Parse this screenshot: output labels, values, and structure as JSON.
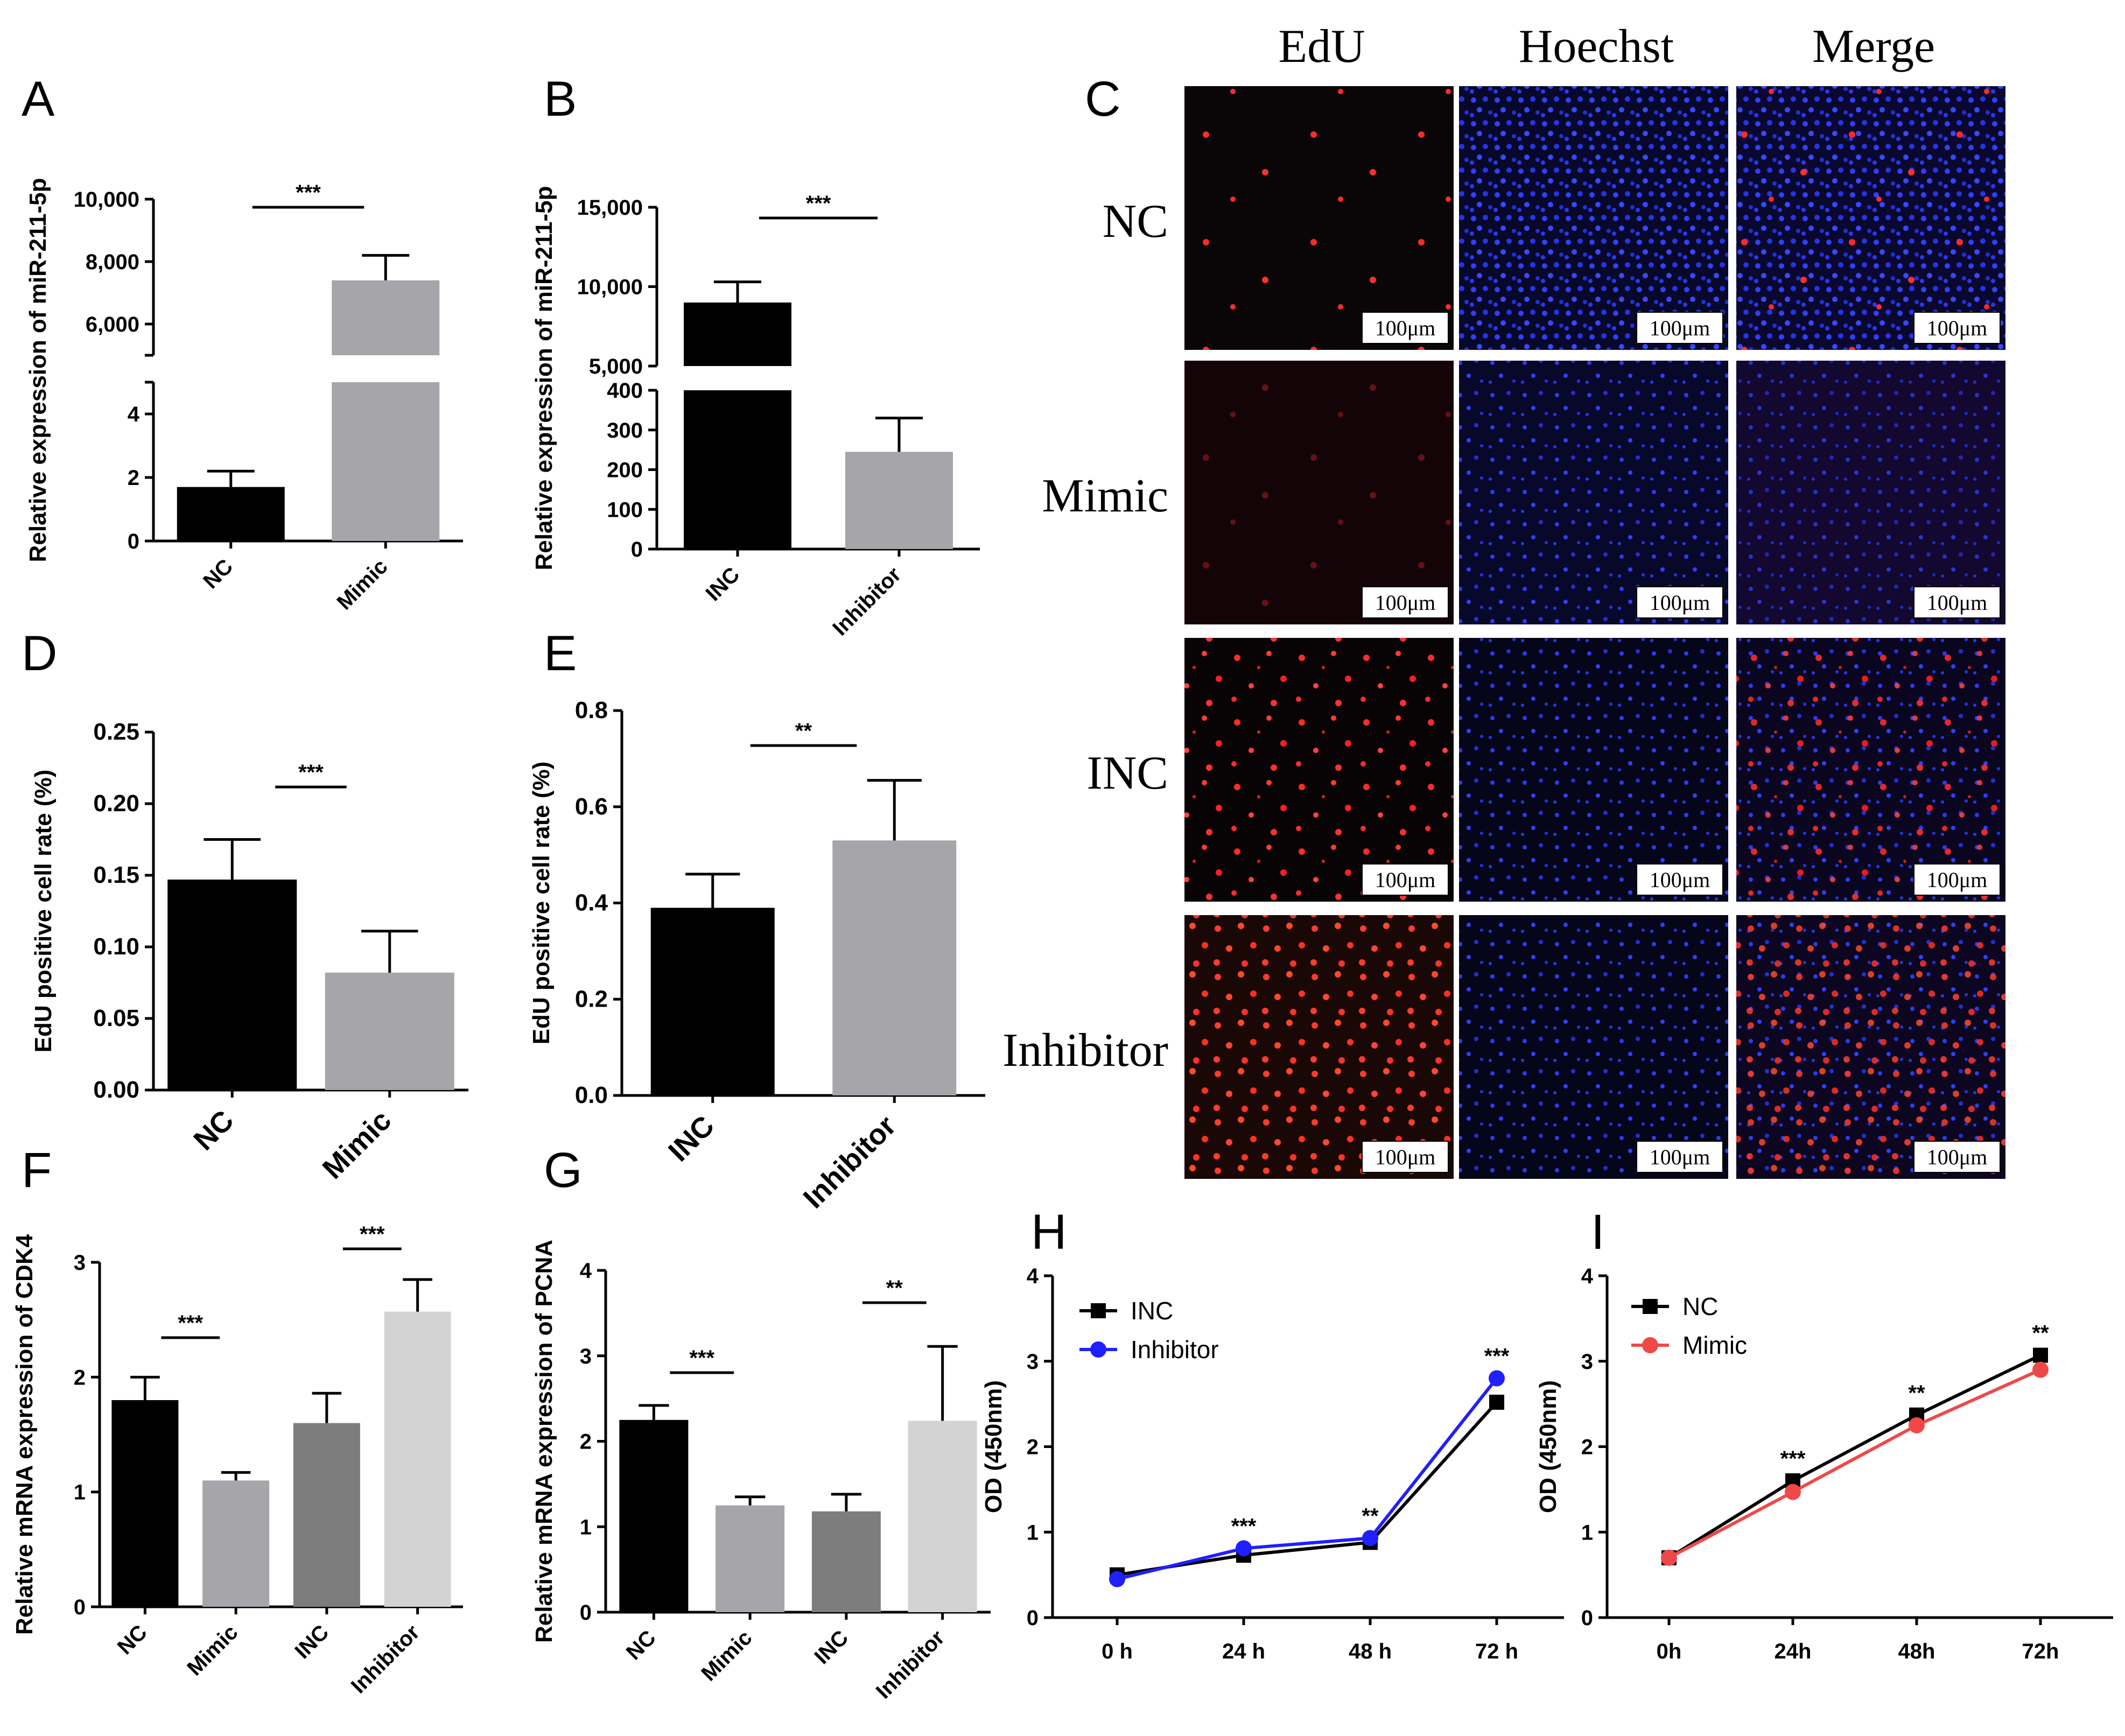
{
  "figure": {
    "panel_labels": [
      "A",
      "B",
      "C",
      "D",
      "E",
      "F",
      "G",
      "H",
      "I"
    ],
    "microscopy": {
      "columns": [
        "EdU",
        "Hoechst",
        "Merge"
      ],
      "rows": [
        "NC",
        "Mimic",
        "INC",
        "Inhibitor"
      ],
      "scale_bar": "100μm",
      "colors": {
        "edu": "#ff2a2a",
        "hoechst": "#2838ff",
        "background": "#06060c"
      }
    }
  },
  "chart_data": [
    {
      "panel": "A",
      "type": "bar",
      "axis_break": true,
      "categories": [
        "NC",
        "Mimic"
      ],
      "values": [
        1.7,
        7400
      ],
      "errors": [
        0.5,
        800
      ],
      "colors": [
        "#000000",
        "#a6a6aa"
      ],
      "ylabel": "Relative expression of miR-211-5p",
      "lower_ticks": [
        "0",
        "2",
        "4"
      ],
      "upper_ticks": [
        "6,000",
        "8,000",
        "10,000"
      ],
      "lower_range": [
        0,
        5
      ],
      "upper_range": [
        5000,
        10000
      ],
      "significance": [
        {
          "pair": [
            0,
            1
          ],
          "label": "***"
        }
      ]
    },
    {
      "panel": "B",
      "type": "bar",
      "axis_break": true,
      "categories": [
        "INC",
        "Inhibitor"
      ],
      "values": [
        9000,
        245
      ],
      "errors": [
        1300,
        85
      ],
      "colors": [
        "#000000",
        "#a6a6aa"
      ],
      "ylabel": "Relative expression of miR-211-5p",
      "lower_ticks": [
        "0",
        "100",
        "200",
        "300",
        "400"
      ],
      "upper_ticks": [
        "5,000",
        "10,000",
        "15,000"
      ],
      "lower_range": [
        0,
        400
      ],
      "upper_range": [
        5000,
        15000
      ],
      "significance": [
        {
          "pair": [
            0,
            1
          ],
          "label": "***"
        }
      ]
    },
    {
      "panel": "D",
      "type": "bar",
      "categories": [
        "NC",
        "Mimic"
      ],
      "values": [
        0.147,
        0.082
      ],
      "errors": [
        0.028,
        0.029
      ],
      "colors": [
        "#000000",
        "#a6a6aa"
      ],
      "ylabel": "EdU positive cell rate (%)",
      "yticks": [
        "0.00",
        "0.05",
        "0.10",
        "0.15",
        "0.20",
        "0.25"
      ],
      "ylim": [
        0,
        0.25
      ],
      "significance": [
        {
          "pair": [
            0,
            1
          ],
          "label": "***"
        }
      ]
    },
    {
      "panel": "E",
      "type": "bar",
      "categories": [
        "INC",
        "Inhibitor"
      ],
      "values": [
        0.39,
        0.53
      ],
      "errors": [
        0.07,
        0.125
      ],
      "colors": [
        "#000000",
        "#a6a6aa"
      ],
      "ylabel": "EdU positive cell rate (%)",
      "yticks": [
        "0.0",
        "0.2",
        "0.4",
        "0.6",
        "0.8"
      ],
      "ylim": [
        0,
        0.8
      ],
      "significance": [
        {
          "pair": [
            0,
            1
          ],
          "label": "**"
        }
      ]
    },
    {
      "panel": "F",
      "type": "bar",
      "categories": [
        "NC",
        "Mimic",
        "INC",
        "Inhibitor"
      ],
      "values": [
        1.8,
        1.1,
        1.6,
        2.57
      ],
      "errors": [
        0.2,
        0.07,
        0.26,
        0.28
      ],
      "colors": [
        "#000000",
        "#a6a6aa",
        "#7d7d7d",
        "#d3d3d3"
      ],
      "ylabel": "Relative mRNA expression of CDK4",
      "yticks": [
        "0",
        "1",
        "2",
        "3"
      ],
      "ylim": [
        0,
        3
      ],
      "significance": [
        {
          "pair": [
            0,
            1
          ],
          "label": "***"
        },
        {
          "pair": [
            2,
            3
          ],
          "label": "***"
        }
      ]
    },
    {
      "panel": "G",
      "type": "bar",
      "categories": [
        "NC",
        "Mimic",
        "INC",
        "Inhibitor"
      ],
      "values": [
        2.25,
        1.25,
        1.18,
        2.24
      ],
      "errors": [
        0.17,
        0.1,
        0.2,
        0.87
      ],
      "colors": [
        "#000000",
        "#a6a6aa",
        "#7d7d7d",
        "#d3d3d3"
      ],
      "ylabel": "Relative mRNA expression of PCNA",
      "yticks": [
        "0",
        "1",
        "2",
        "3",
        "4"
      ],
      "ylim": [
        0,
        4
      ],
      "significance": [
        {
          "pair": [
            0,
            1
          ],
          "label": "***"
        },
        {
          "pair": [
            2,
            3
          ],
          "label": "**"
        }
      ]
    },
    {
      "panel": "H",
      "type": "line",
      "x": [
        "0 h",
        "24 h",
        "48 h",
        "72 h"
      ],
      "series": [
        {
          "name": "INC",
          "values": [
            0.5,
            0.73,
            0.88,
            2.52
          ],
          "color": "#000000",
          "marker": "square"
        },
        {
          "name": "Inhibitor",
          "values": [
            0.45,
            0.81,
            0.93,
            2.8
          ],
          "color": "#1f1fff",
          "marker": "circle"
        }
      ],
      "ylabel": "OD (450nm)",
      "yticks": [
        "0",
        "1",
        "2",
        "3",
        "4"
      ],
      "ylim": [
        0,
        4
      ],
      "point_labels": [
        "",
        "***",
        "**",
        "***"
      ]
    },
    {
      "panel": "I",
      "type": "line",
      "x": [
        "0h",
        "24h",
        "48h",
        "72h"
      ],
      "series": [
        {
          "name": "NC",
          "values": [
            0.7,
            1.6,
            2.37,
            3.07
          ],
          "color": "#000000",
          "marker": "square"
        },
        {
          "name": "Mimic",
          "values": [
            0.7,
            1.47,
            2.25,
            2.9
          ],
          "color": "#f04848",
          "marker": "circle"
        }
      ],
      "ylabel": "OD (450nm)",
      "yticks": [
        "0",
        "1",
        "2",
        "3",
        "4"
      ],
      "ylim": [
        0,
        4
      ],
      "point_labels": [
        "",
        "***",
        "**",
        "**"
      ]
    }
  ]
}
